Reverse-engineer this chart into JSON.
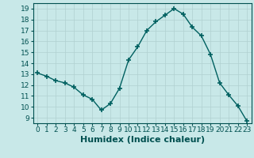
{
  "x": [
    0,
    1,
    2,
    3,
    4,
    5,
    6,
    7,
    8,
    9,
    10,
    11,
    12,
    13,
    14,
    15,
    16,
    17,
    18,
    19,
    20,
    21,
    22,
    23
  ],
  "y": [
    13.1,
    12.8,
    12.4,
    12.2,
    11.8,
    11.1,
    10.7,
    9.7,
    10.3,
    11.7,
    14.3,
    15.5,
    17.0,
    17.8,
    18.4,
    19.0,
    18.5,
    17.3,
    16.5,
    14.8,
    12.2,
    11.1,
    10.1,
    8.7
  ],
  "line_color": "#006060",
  "marker": "+",
  "marker_size": 4,
  "marker_linewidth": 1.2,
  "bg_color": "#c8e8e8",
  "grid_color": "#b0d0d0",
  "xlabel": "Humidex (Indice chaleur)",
  "xlim": [
    -0.5,
    23.5
  ],
  "ylim": [
    8.5,
    19.5
  ],
  "yticks": [
    9,
    10,
    11,
    12,
    13,
    14,
    15,
    16,
    17,
    18,
    19
  ],
  "xticks": [
    0,
    1,
    2,
    3,
    4,
    5,
    6,
    7,
    8,
    9,
    10,
    11,
    12,
    13,
    14,
    15,
    16,
    17,
    18,
    19,
    20,
    21,
    22,
    23
  ],
  "tick_color": "#005050",
  "label_color": "#005050",
  "spine_color": "#005050",
  "xlabel_fontsize": 8,
  "tick_fontsize": 6.5,
  "line_width": 1.0
}
